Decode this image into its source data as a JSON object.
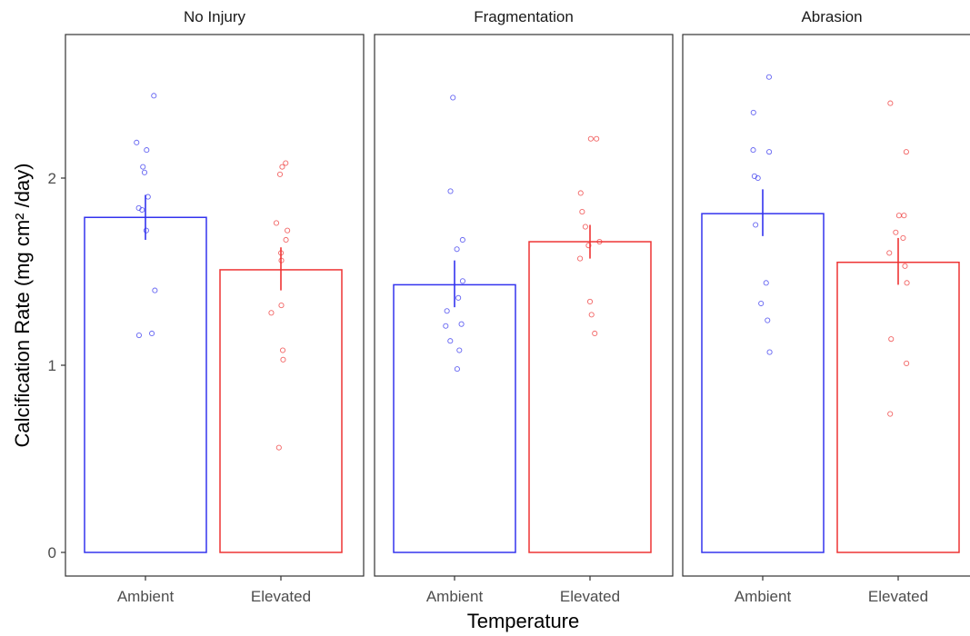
{
  "chart_data": {
    "type": "bar",
    "xlabel": "Temperature",
    "ylabel": "Calcification Rate (mg cm² /day)",
    "ylim": [
      0,
      2.75
    ],
    "yticks": [
      0,
      1,
      2
    ],
    "categories": [
      "Ambient",
      "Elevated"
    ],
    "colors": {
      "Ambient": "#3333ee",
      "Elevated": "#ee3333"
    },
    "grid": false,
    "legend": "none",
    "panels": [
      {
        "title": "No Injury",
        "bars": [
          {
            "category": "Ambient",
            "mean": 1.79,
            "se_low": 1.67,
            "se_high": 1.91,
            "points": [
              2.44,
              2.19,
              2.15,
              2.06,
              2.03,
              1.9,
              1.84,
              1.83,
              1.72,
              1.4,
              1.17,
              1.16
            ]
          },
          {
            "category": "Elevated",
            "mean": 1.51,
            "se_low": 1.4,
            "se_high": 1.63,
            "points": [
              2.08,
              2.06,
              2.02,
              1.76,
              1.72,
              1.67,
              1.6,
              1.56,
              1.32,
              1.28,
              1.08,
              1.03,
              0.56
            ]
          }
        ]
      },
      {
        "title": "Fragmentation",
        "bars": [
          {
            "category": "Ambient",
            "mean": 1.43,
            "se_low": 1.31,
            "se_high": 1.56,
            "points": [
              2.43,
              1.93,
              1.67,
              1.62,
              1.45,
              1.36,
              1.29,
              1.22,
              1.21,
              1.13,
              1.08,
              0.98
            ]
          },
          {
            "category": "Elevated",
            "mean": 1.66,
            "se_low": 1.57,
            "se_high": 1.75,
            "points": [
              2.21,
              2.21,
              1.92,
              1.82,
              1.74,
              1.66,
              1.64,
              1.57,
              1.34,
              1.27,
              1.17
            ]
          }
        ]
      },
      {
        "title": "Abrasion",
        "bars": [
          {
            "category": "Ambient",
            "mean": 1.81,
            "se_low": 1.69,
            "se_high": 1.94,
            "points": [
              2.54,
              2.35,
              2.15,
              2.14,
              2.01,
              2.0,
              1.75,
              1.44,
              1.33,
              1.24,
              1.07
            ]
          },
          {
            "category": "Elevated",
            "mean": 1.55,
            "se_low": 1.43,
            "se_high": 1.68,
            "points": [
              2.4,
              2.14,
              1.8,
              1.8,
              1.71,
              1.68,
              1.6,
              1.53,
              1.44,
              1.14,
              1.01,
              0.74
            ]
          }
        ]
      }
    ]
  }
}
